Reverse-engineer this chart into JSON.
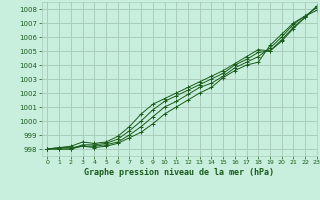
{
  "title": "Graphe pression niveau de la mer (hPa)",
  "background_color": "#c8eedd",
  "grid_color": "#aaccbb",
  "line_color": "#1a5c1a",
  "text_color": "#1a5c1a",
  "xlim": [
    -0.5,
    23
  ],
  "ylim": [
    997.5,
    1008.5
  ],
  "yticks": [
    998,
    999,
    1000,
    1001,
    1002,
    1003,
    1004,
    1005,
    1006,
    1007,
    1008
  ],
  "xticks": [
    0,
    1,
    2,
    3,
    4,
    5,
    6,
    7,
    8,
    9,
    10,
    11,
    12,
    13,
    14,
    15,
    16,
    17,
    18,
    19,
    20,
    21,
    22,
    23
  ],
  "series": [
    [
      998.0,
      998.1,
      998.1,
      998.2,
      998.1,
      998.2,
      998.4,
      998.8,
      999.2,
      999.8,
      1000.5,
      1001.0,
      1001.5,
      1002.0,
      1002.4,
      1003.1,
      1003.6,
      1004.0,
      1004.2,
      1005.4,
      1006.2,
      1007.0,
      1007.5,
      1007.9
    ],
    [
      998.0,
      998.0,
      998.0,
      998.2,
      998.2,
      998.3,
      998.5,
      999.0,
      999.6,
      1000.3,
      1001.0,
      1001.4,
      1001.9,
      1002.4,
      1002.7,
      1003.2,
      1003.8,
      1004.2,
      1004.6,
      1005.2,
      1006.0,
      1006.9,
      1007.5,
      1008.1
    ],
    [
      998.0,
      998.0,
      998.0,
      998.3,
      998.3,
      998.4,
      998.7,
      999.3,
      1000.0,
      1000.8,
      1001.4,
      1001.8,
      1002.2,
      1002.6,
      1003.0,
      1003.4,
      1004.0,
      1004.4,
      1004.9,
      1005.0,
      1005.8,
      1006.7,
      1007.4,
      1008.2
    ],
    [
      998.0,
      998.1,
      998.2,
      998.5,
      998.4,
      998.5,
      998.9,
      999.6,
      1000.5,
      1001.2,
      1001.6,
      1002.0,
      1002.4,
      1002.8,
      1003.2,
      1003.6,
      1004.1,
      1004.6,
      1005.1,
      1005.0,
      1005.7,
      1006.6,
      1007.4,
      1008.2
    ]
  ]
}
